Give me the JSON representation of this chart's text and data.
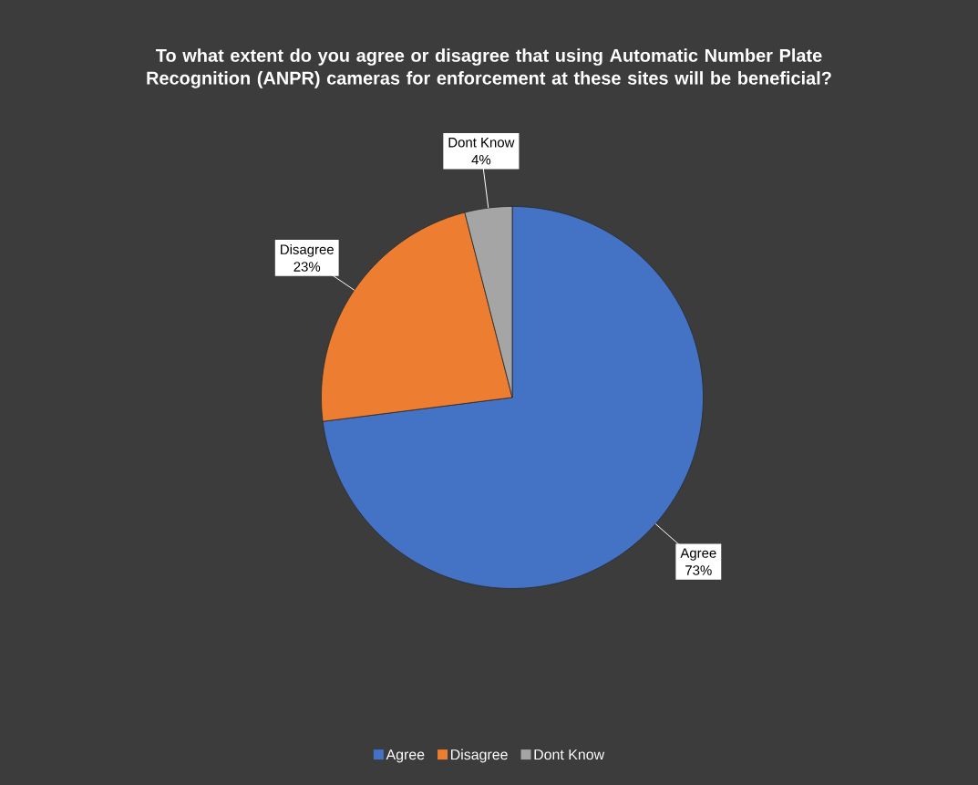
{
  "chart_data": {
    "type": "pie",
    "title": "To what extent do you agree or disagree that using Automatic Number Plate Recognition (ANPR) cameras for enforcement at these sites will be beneficial?",
    "categories": [
      "Agree",
      "Disagree",
      "Dont Know"
    ],
    "values": [
      73,
      23,
      4
    ],
    "value_labels": [
      "73%",
      "23%",
      "4%"
    ],
    "colors": [
      "#4472c4",
      "#ed7d31",
      "#a5a5a5"
    ],
    "legend": "bottom"
  }
}
